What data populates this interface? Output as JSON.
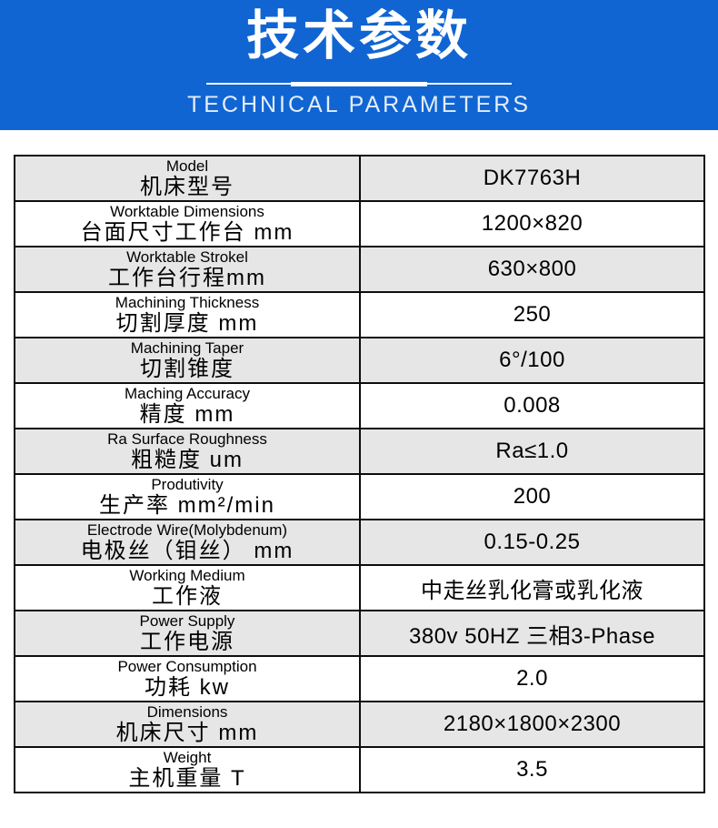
{
  "header": {
    "title": "技术参数",
    "subtitle": "TECHNICAL PARAMETERS",
    "banner_color": "#1065d2",
    "title_color": "#ffffff"
  },
  "table": {
    "shaded_row_color": "#e6e6e6",
    "border_color": "#0d0d0d",
    "rows": [
      {
        "en": "Model",
        "zh": "机床型号",
        "value": "DK7763H"
      },
      {
        "en": "Worktable Dimensions",
        "zh": "台面尺寸工作台 mm",
        "value": "1200×820"
      },
      {
        "en": "Worktable Strokel",
        "zh": "工作台行程mm",
        "value": "630×800"
      },
      {
        "en": "Machining Thickness",
        "zh": "切割厚度 mm",
        "value": "250"
      },
      {
        "en": "Machining Taper",
        "zh": "切割锥度",
        "value": "6°/100"
      },
      {
        "en": "Maching Accuracy",
        "zh": "精度 mm",
        "value": "0.008"
      },
      {
        "en": "Ra Surface Roughness",
        "zh": "粗糙度 um",
        "value": "Ra≤1.0"
      },
      {
        "en": "Produtivity",
        "zh": "生产率 mm²/min",
        "value": "200"
      },
      {
        "en": "Electrode Wire(Molybdenum)",
        "zh": "电极丝（钼丝） mm",
        "value": "0.15-0.25"
      },
      {
        "en": "Working Medium",
        "zh": "工作液",
        "value": "中走丝乳化膏或乳化液"
      },
      {
        "en": "Power Supply",
        "zh": "工作电源",
        "value": "380v 50HZ 三相3-Phase"
      },
      {
        "en": "Power Consumption",
        "zh": "功耗 kw",
        "value": "2.0"
      },
      {
        "en": "Dimensions",
        "zh": "机床尺寸 mm",
        "value": "2180×1800×2300"
      },
      {
        "en": "Weight",
        "zh": "主机重量 T",
        "value": "3.5"
      }
    ]
  }
}
